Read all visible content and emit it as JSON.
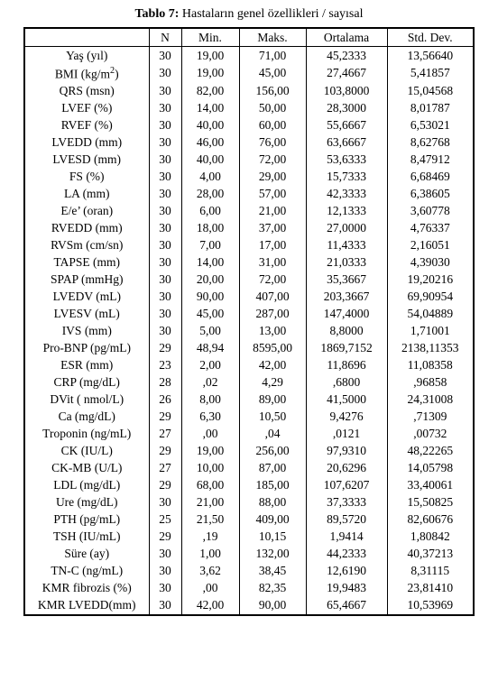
{
  "caption_bold": "Tablo 7:",
  "caption_rest": " Hastaların genel özellikleri / sayısal",
  "headers": [
    "",
    "N",
    "Min.",
    "Maks.",
    "Ortalama",
    "Std. Dev."
  ],
  "rows": [
    {
      "label": "Yaş (yıl)",
      "n": "30",
      "min": "19,00",
      "max": "71,00",
      "mean": "45,2333",
      "std": "13,56640"
    },
    {
      "label": "BMI (kg/m²)",
      "n": "30",
      "min": "19,00",
      "max": "45,00",
      "mean": "27,4667",
      "std": "5,41857",
      "super": true
    },
    {
      "label": "QRS (msn)",
      "n": "30",
      "min": "82,00",
      "max": "156,00",
      "mean": "103,8000",
      "std": "15,04568"
    },
    {
      "label": "LVEF (%)",
      "n": "30",
      "min": "14,00",
      "max": "50,00",
      "mean": "28,3000",
      "std": "8,01787"
    },
    {
      "label": "RVEF (%)",
      "n": "30",
      "min": "40,00",
      "max": "60,00",
      "mean": "55,6667",
      "std": "6,53021"
    },
    {
      "label": "LVEDD (mm)",
      "n": "30",
      "min": "46,00",
      "max": "76,00",
      "mean": "63,6667",
      "std": "8,62768"
    },
    {
      "label": "LVESD (mm)",
      "n": "30",
      "min": "40,00",
      "max": "72,00",
      "mean": "53,6333",
      "std": "8,47912"
    },
    {
      "label": "FS (%)",
      "n": "30",
      "min": "4,00",
      "max": "29,00",
      "mean": "15,7333",
      "std": "6,68469"
    },
    {
      "label": "LA (mm)",
      "n": "30",
      "min": "28,00",
      "max": "57,00",
      "mean": "42,3333",
      "std": "6,38605"
    },
    {
      "label": "E/e’ (oran)",
      "n": "30",
      "min": "6,00",
      "max": "21,00",
      "mean": "12,1333",
      "std": "3,60778"
    },
    {
      "label": "RVEDD (mm)",
      "n": "30",
      "min": "18,00",
      "max": "37,00",
      "mean": "27,0000",
      "std": "4,76337"
    },
    {
      "label": "RVSm (cm/sn)",
      "n": "30",
      "min": "7,00",
      "max": "17,00",
      "mean": "11,4333",
      "std": "2,16051"
    },
    {
      "label": "TAPSE (mm)",
      "n": "30",
      "min": "14,00",
      "max": "31,00",
      "mean": "21,0333",
      "std": "4,39030"
    },
    {
      "label": "SPAP (mmHg)",
      "n": "30",
      "min": "20,00",
      "max": "72,00",
      "mean": "35,3667",
      "std": "19,20216"
    },
    {
      "label": "LVEDV (mL)",
      "n": "30",
      "min": "90,00",
      "max": "407,00",
      "mean": "203,3667",
      "std": "69,90954"
    },
    {
      "label": "LVESV (mL)",
      "n": "30",
      "min": "45,00",
      "max": "287,00",
      "mean": "147,4000",
      "std": "54,04889"
    },
    {
      "label": "IVS (mm)",
      "n": "30",
      "min": "5,00",
      "max": "13,00",
      "mean": "8,8000",
      "std": "1,71001"
    },
    {
      "label": "Pro-BNP (pg/mL)",
      "n": "29",
      "min": "48,94",
      "max": "8595,00",
      "mean": "1869,7152",
      "std": "2138,11353"
    },
    {
      "label": "ESR (mm)",
      "n": "23",
      "min": "2,00",
      "max": "42,00",
      "mean": "11,8696",
      "std": "11,08358"
    },
    {
      "label": "CRP (mg/dL)",
      "n": "28",
      "min": ",02",
      "max": "4,29",
      "mean": ",6800",
      "std": ",96858"
    },
    {
      "label": "DVit ( nmol/L)",
      "n": "26",
      "min": "8,00",
      "max": "89,00",
      "mean": "41,5000",
      "std": "24,31008"
    },
    {
      "label": "Ca (mg/dL)",
      "n": "29",
      "min": "6,30",
      "max": "10,50",
      "mean": "9,4276",
      "std": ",71309"
    },
    {
      "label": "Troponin (ng/mL)",
      "n": "27",
      "min": ",00",
      "max": ",04",
      "mean": ",0121",
      "std": ",00732"
    },
    {
      "label": "CK (IU/L)",
      "n": "29",
      "min": "19,00",
      "max": "256,00",
      "mean": "97,9310",
      "std": "48,22265"
    },
    {
      "label": "CK-MB (U/L)",
      "n": "27",
      "min": "10,00",
      "max": "87,00",
      "mean": "20,6296",
      "std": "14,05798"
    },
    {
      "label": "LDL (mg/dL)",
      "n": "29",
      "min": "68,00",
      "max": "185,00",
      "mean": "107,6207",
      "std": "33,40061"
    },
    {
      "label": "Ure (mg/dL)",
      "n": "30",
      "min": "21,00",
      "max": "88,00",
      "mean": "37,3333",
      "std": "15,50825"
    },
    {
      "label": "PTH (pg/mL)",
      "n": "25",
      "min": "21,50",
      "max": "409,00",
      "mean": "89,5720",
      "std": "82,60676"
    },
    {
      "label": "TSH (IU/mL)",
      "n": "29",
      "min": ",19",
      "max": "10,15",
      "mean": "1,9414",
      "std": "1,80842"
    },
    {
      "label": "Süre (ay)",
      "n": "30",
      "min": "1,00",
      "max": "132,00",
      "mean": "44,2333",
      "std": "40,37213"
    },
    {
      "label": "TN-C (ng/mL)",
      "n": "30",
      "min": "3,62",
      "max": "38,45",
      "mean": "12,6190",
      "std": "8,31115"
    },
    {
      "label": "KMR fibrozis (%)",
      "n": "30",
      "min": ",00",
      "max": "82,35",
      "mean": "19,9483",
      "std": "23,81410"
    },
    {
      "label": "KMR LVEDD(mm)",
      "n": "30",
      "min": "42,00",
      "max": "90,00",
      "mean": "65,4667",
      "std": "10,53969"
    }
  ]
}
